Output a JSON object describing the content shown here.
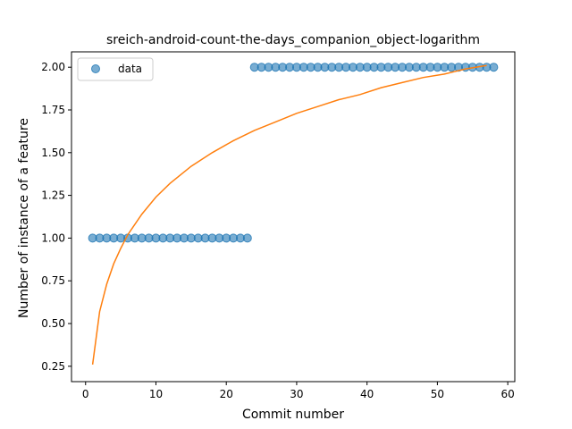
{
  "chart_data": {
    "type": "scatter",
    "title": "sreich-android-count-the-days_companion_object-logarithm",
    "xlabel": "Commit number",
    "ylabel": "Number of instance of a feature",
    "xlim": [
      -2,
      61
    ],
    "ylim": [
      0.16,
      2.09
    ],
    "xticks": [
      0,
      10,
      20,
      30,
      40,
      50,
      60
    ],
    "yticks": [
      0.25,
      0.5,
      0.75,
      1.0,
      1.25,
      1.5,
      1.75,
      2.0
    ],
    "xtick_labels": [
      "0",
      "10",
      "20",
      "30",
      "40",
      "50",
      "60"
    ],
    "ytick_labels": [
      "0.25",
      "0.50",
      "0.75",
      "1.00",
      "1.25",
      "1.50",
      "1.75",
      "2.00"
    ],
    "legend": {
      "position": "top-left",
      "entries": [
        "data"
      ]
    },
    "series": [
      {
        "name": "data",
        "kind": "scatter",
        "color": "#1f77b4",
        "x": [
          1,
          2,
          3,
          4,
          5,
          6,
          7,
          8,
          9,
          10,
          11,
          12,
          13,
          14,
          15,
          16,
          17,
          18,
          19,
          20,
          21,
          22,
          23,
          24,
          25,
          26,
          27,
          28,
          29,
          30,
          31,
          32,
          33,
          34,
          35,
          36,
          37,
          38,
          39,
          40,
          41,
          42,
          43,
          44,
          45,
          46,
          47,
          48,
          49,
          50,
          51,
          52,
          53,
          54,
          55,
          56,
          57,
          58
        ],
        "y": [
          1,
          1,
          1,
          1,
          1,
          1,
          1,
          1,
          1,
          1,
          1,
          1,
          1,
          1,
          1,
          1,
          1,
          1,
          1,
          1,
          1,
          1,
          1,
          2,
          2,
          2,
          2,
          2,
          2,
          2,
          2,
          2,
          2,
          2,
          2,
          2,
          2,
          2,
          2,
          2,
          2,
          2,
          2,
          2,
          2,
          2,
          2,
          2,
          2,
          2,
          2,
          2,
          2,
          2,
          2,
          2,
          2,
          2
        ]
      },
      {
        "kind": "line",
        "color": "#ff7f0e",
        "x": [
          1,
          2,
          3,
          4,
          5,
          6,
          8,
          10,
          12,
          15,
          18,
          21,
          24,
          27,
          30,
          33,
          36,
          39,
          42,
          45,
          48,
          51,
          54,
          57
        ],
        "y": [
          0.26,
          0.57,
          0.73,
          0.85,
          0.94,
          1.02,
          1.14,
          1.24,
          1.32,
          1.42,
          1.5,
          1.57,
          1.63,
          1.68,
          1.73,
          1.77,
          1.81,
          1.84,
          1.88,
          1.91,
          1.94,
          1.96,
          1.99,
          2.01
        ]
      }
    ]
  }
}
